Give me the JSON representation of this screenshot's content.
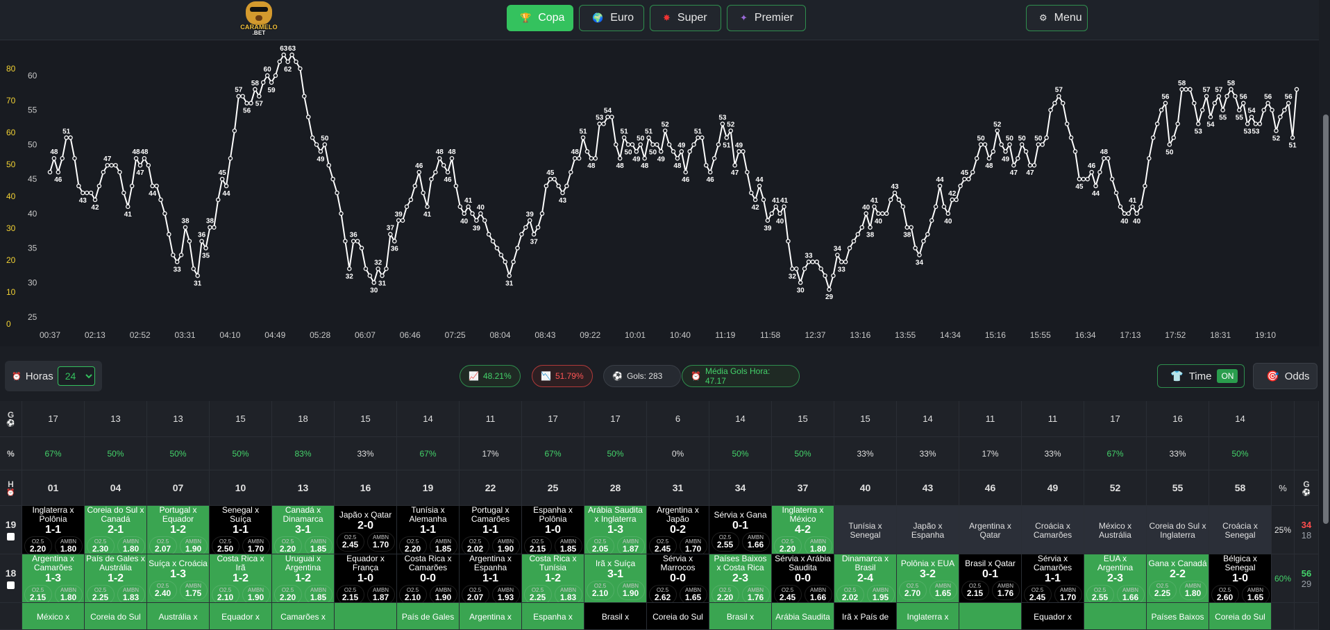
{
  "header": {
    "logo_text_1": "CARAMELO",
    "logo_text_2": ".BET",
    "tabs": [
      {
        "label": "Copa",
        "icon": "trophy-icon",
        "active": true
      },
      {
        "label": "Euro",
        "icon": "globe-icon",
        "active": false
      },
      {
        "label": "Super",
        "icon": "star-burst-icon",
        "active": false
      },
      {
        "label": "Premier",
        "icon": "sparkle-icon",
        "active": false
      }
    ],
    "menu_label": "Menu"
  },
  "chart_data": {
    "type": "line",
    "title": "",
    "x_tick_labels": [
      "00:37",
      "02:13",
      "02:52",
      "03:31",
      "04:10",
      "04:49",
      "05:28",
      "06:07",
      "06:46",
      "07:25",
      "08:04",
      "08:43",
      "09:22",
      "10:01",
      "10:40",
      "11:19",
      "11:58",
      "12:37",
      "13:16",
      "13:55",
      "14:34",
      "15:16",
      "15:55",
      "16:34",
      "17:13",
      "17:52",
      "18:31",
      "19:10"
    ],
    "y_left_ticks": [
      0,
      10,
      20,
      30,
      40,
      50,
      60,
      70,
      80
    ],
    "y_right_ticks": [
      25,
      30,
      35,
      40,
      45,
      50,
      55,
      60
    ],
    "y_right_range": [
      25,
      62
    ],
    "series": [
      {
        "values": [
          46,
          48,
          46,
          48,
          51,
          51,
          48,
          44,
          43,
          43,
          43,
          42,
          44,
          46,
          47,
          47,
          47,
          46,
          43,
          41,
          44,
          48,
          47,
          48,
          47,
          44,
          44,
          42,
          40,
          37,
          34,
          33,
          34,
          38,
          36,
          32,
          31,
          36,
          35,
          38,
          38,
          42,
          45,
          44,
          48,
          52,
          57,
          57,
          56,
          56,
          58,
          57,
          59,
          60,
          59,
          60,
          62,
          63,
          62,
          63,
          62,
          61,
          57,
          54,
          51,
          50,
          49,
          50,
          47,
          45,
          43,
          40,
          36,
          32,
          36,
          36,
          35,
          32,
          31,
          30,
          32,
          31,
          32,
          37,
          36,
          39,
          39,
          41,
          42,
          44,
          46,
          43,
          41,
          45,
          46,
          48,
          47,
          46,
          48,
          44,
          41,
          40,
          41,
          40,
          39,
          40,
          39,
          37,
          36,
          35,
          34,
          33,
          31,
          33,
          35,
          37,
          38,
          39,
          37,
          38,
          40,
          44,
          45,
          45,
          44,
          43,
          44,
          46,
          48,
          48,
          51,
          49,
          48,
          48,
          53,
          53,
          54,
          54,
          50,
          48,
          51,
          50,
          50,
          49,
          50,
          48,
          51,
          50,
          50,
          49,
          52,
          50,
          49,
          48,
          49,
          46,
          49,
          50,
          51,
          51,
          47,
          46,
          48,
          50,
          53,
          51,
          52,
          47,
          49,
          49,
          46,
          43,
          42,
          44,
          42,
          39,
          40,
          41,
          40,
          41,
          36,
          32,
          32,
          30,
          32,
          33,
          33,
          33,
          32,
          31,
          29,
          31,
          34,
          33,
          33,
          35,
          36,
          37,
          38,
          40,
          38,
          41,
          40,
          40,
          40,
          42,
          43,
          42,
          41,
          38,
          38,
          35,
          34,
          36,
          37,
          39,
          41,
          44,
          41,
          40,
          42,
          42,
          44,
          45,
          45,
          46,
          48,
          50,
          50,
          48,
          49,
          52,
          50,
          49,
          50,
          47,
          48,
          50,
          49,
          47,
          47,
          50,
          50,
          51,
          55,
          56,
          57,
          56,
          53,
          51,
          49,
          45,
          45,
          45,
          46,
          44,
          46,
          48,
          48,
          45,
          43,
          41,
          40,
          40,
          41,
          40,
          41,
          44,
          48,
          51,
          53,
          55,
          56,
          50,
          51,
          53,
          58,
          58,
          58,
          56,
          53,
          55,
          57,
          54,
          56,
          57,
          55,
          57,
          58,
          57,
          55,
          56,
          53,
          54,
          53,
          53,
          55,
          56,
          55,
          52,
          54,
          55,
          56,
          51,
          58
        ]
      }
    ]
  },
  "controls": {
    "hours_label": "Horas",
    "hours_value": "24",
    "stat_up": "48.21%",
    "stat_down": "51.79%",
    "gols": "Gols: 283",
    "media": "Média Gols Hora: 47.17",
    "time_label": "Time",
    "time_state": "ON",
    "odds_label": "Odds"
  },
  "grid": {
    "label_g": "G",
    "label_pct": "%",
    "label_h": "H",
    "goals": [
      "17",
      "13",
      "13",
      "15",
      "18",
      "15",
      "14",
      "11",
      "17",
      "17",
      "6",
      "14",
      "15",
      "15",
      "14",
      "11",
      "11",
      "17",
      "16",
      "14"
    ],
    "percents": [
      "67%",
      "50%",
      "50%",
      "50%",
      "83%",
      "33%",
      "67%",
      "17%",
      "67%",
      "50%",
      "0%",
      "50%",
      "50%",
      "33%",
      "33%",
      "17%",
      "33%",
      "67%",
      "33%",
      "50%"
    ],
    "minutes": [
      "01",
      "04",
      "07",
      "10",
      "13",
      "16",
      "19",
      "22",
      "25",
      "28",
      "31",
      "34",
      "37",
      "40",
      "43",
      "46",
      "49",
      "52",
      "55",
      "58"
    ],
    "odd_key_1": "O2.5",
    "odd_key_2": "AMBN",
    "rows": [
      {
        "hour": "19",
        "pct": "25%",
        "count_a": "34",
        "count_b": "18",
        "cells": [
          {
            "teams": "Inglaterra x Polônia",
            "score": "1-1",
            "o1": "2.20",
            "o2": "1.80",
            "c": "black"
          },
          {
            "teams": "Coreia do Sul x Canadá",
            "score": "2-1",
            "o1": "2.30",
            "o2": "1.80",
            "c": "green"
          },
          {
            "teams": "Portugal x Equador",
            "score": "1-2",
            "o1": "2.07",
            "o2": "1.90",
            "c": "green"
          },
          {
            "teams": "Senegal x Suíça",
            "score": "1-1",
            "o1": "2.50",
            "o2": "1.70",
            "c": "black"
          },
          {
            "teams": "Canadá x Dinamarca",
            "score": "3-1",
            "o1": "2.20",
            "o2": "1.85",
            "c": "green"
          },
          {
            "teams": "Japão x Qatar",
            "score": "2-0",
            "o1": "2.45",
            "o2": "1.70",
            "c": "black"
          },
          {
            "teams": "Tunísia x Alemanha",
            "score": "1-1",
            "o1": "2.20",
            "o2": "1.85",
            "c": "black"
          },
          {
            "teams": "Portugal x Camarões",
            "score": "1-1",
            "o1": "2.02",
            "o2": "1.90",
            "c": "black"
          },
          {
            "teams": "Espanha x Polônia",
            "score": "1-0",
            "o1": "2.15",
            "o2": "1.85",
            "c": "black"
          },
          {
            "teams": "Arábia Saudita x Inglaterra",
            "score": "1-3",
            "o1": "2.05",
            "o2": "1.87",
            "c": "green"
          },
          {
            "teams": "Argentina x Japão",
            "score": "0-2",
            "o1": "2.45",
            "o2": "1.70",
            "c": "black"
          },
          {
            "teams": "Sérvia x Gana",
            "score": "0-1",
            "o1": "2.55",
            "o2": "1.66",
            "c": "black"
          },
          {
            "teams": "Inglaterra x México",
            "score": "4-2",
            "o1": "2.20",
            "o2": "1.80",
            "c": "green"
          },
          {
            "teams": "Tunísia x Senegal",
            "score": "",
            "o1": "",
            "o2": "",
            "c": "gray"
          },
          {
            "teams": "Japão x Espanha",
            "score": "",
            "o1": "",
            "o2": "",
            "c": "gray"
          },
          {
            "teams": "Argentina x Qatar",
            "score": "",
            "o1": "",
            "o2": "",
            "c": "gray"
          },
          {
            "teams": "Croácia x Camarões",
            "score": "",
            "o1": "",
            "o2": "",
            "c": "gray"
          },
          {
            "teams": "México x Austrália",
            "score": "",
            "o1": "",
            "o2": "",
            "c": "gray"
          },
          {
            "teams": "Coreia do Sul x Inglaterra",
            "score": "",
            "o1": "",
            "o2": "",
            "c": "gray"
          },
          {
            "teams": "Croácia x Senegal",
            "score": "",
            "o1": "",
            "o2": "",
            "c": "gray"
          }
        ]
      },
      {
        "hour": "18",
        "pct": "60%",
        "count_a": "56",
        "count_b": "29",
        "cells": [
          {
            "teams": "Argentina x Camarões",
            "score": "1-3",
            "o1": "2.15",
            "o2": "1.80",
            "c": "green"
          },
          {
            "teams": "País de Gales x Austrália",
            "score": "1-2",
            "o1": "2.25",
            "o2": "1.83",
            "c": "green"
          },
          {
            "teams": "Suíça x Croácia",
            "score": "1-3",
            "o1": "2.40",
            "o2": "1.75",
            "c": "green"
          },
          {
            "teams": "Costa Rica x Irã",
            "score": "1-2",
            "o1": "2.10",
            "o2": "1.90",
            "c": "green"
          },
          {
            "teams": "Uruguai x Argentina",
            "score": "1-2",
            "o1": "2.20",
            "o2": "1.85",
            "c": "green"
          },
          {
            "teams": "Equador x França",
            "score": "1-0",
            "o1": "2.15",
            "o2": "1.87",
            "c": "black"
          },
          {
            "teams": "Costa Rica x Camarões",
            "score": "0-0",
            "o1": "2.10",
            "o2": "1.90",
            "c": "black"
          },
          {
            "teams": "Argentina x Espanha",
            "score": "1-1",
            "o1": "2.07",
            "o2": "1.93",
            "c": "black"
          },
          {
            "teams": "Costa Rica x Tunísia",
            "score": "1-2",
            "o1": "2.25",
            "o2": "1.83",
            "c": "green"
          },
          {
            "teams": "Irã x Suíça",
            "score": "3-1",
            "o1": "2.10",
            "o2": "1.90",
            "c": "green"
          },
          {
            "teams": "Sérvia x Marrocos",
            "score": "0-0",
            "o1": "2.62",
            "o2": "1.65",
            "c": "black"
          },
          {
            "teams": "Países Baixos x Costa Rica",
            "score": "2-3",
            "o1": "2.20",
            "o2": "1.76",
            "c": "green"
          },
          {
            "teams": "Sérvia x Arábia Saudita",
            "score": "0-0",
            "o1": "2.45",
            "o2": "1.66",
            "c": "black"
          },
          {
            "teams": "Dinamarca x Brasil",
            "score": "2-4",
            "o1": "2.02",
            "o2": "1.95",
            "c": "green"
          },
          {
            "teams": "Polônia x EUA",
            "score": "3-2",
            "o1": "2.70",
            "o2": "1.65",
            "c": "green"
          },
          {
            "teams": "Brasil x Qatar",
            "score": "0-1",
            "o1": "2.15",
            "o2": "1.76",
            "c": "black"
          },
          {
            "teams": "Sérvia x Camarões",
            "score": "1-1",
            "o1": "2.45",
            "o2": "1.70",
            "c": "black"
          },
          {
            "teams": "EUA x Argentina",
            "score": "2-3",
            "o1": "2.55",
            "o2": "1.66",
            "c": "green"
          },
          {
            "teams": "Gana x Canadá",
            "score": "2-2",
            "o1": "2.25",
            "o2": "1.80",
            "c": "green"
          },
          {
            "teams": "Bélgica x Senegal",
            "score": "1-0",
            "o1": "2.60",
            "o2": "1.65",
            "c": "black"
          }
        ]
      },
      {
        "hour": "",
        "pct": "",
        "count_a": "",
        "count_b": "",
        "cells": [
          {
            "teams": "México x",
            "c": "green"
          },
          {
            "teams": "Coreia do Sul",
            "c": "green"
          },
          {
            "teams": "Austrália x",
            "c": "green"
          },
          {
            "teams": "Equador x",
            "c": "green"
          },
          {
            "teams": "Camarões x",
            "c": "green"
          },
          {
            "teams": "",
            "c": "green"
          },
          {
            "teams": "País de Gales",
            "c": "green"
          },
          {
            "teams": "Argentina x",
            "c": "green"
          },
          {
            "teams": "Espanha x",
            "c": "green"
          },
          {
            "teams": "Brasil x",
            "c": "black"
          },
          {
            "teams": "Coreia do Sul",
            "c": "black"
          },
          {
            "teams": "Brasil x",
            "c": "green"
          },
          {
            "teams": "Arábia Saudita",
            "c": "green"
          },
          {
            "teams": "Irã x País de",
            "c": "black"
          },
          {
            "teams": "Inglaterra x",
            "c": "green"
          },
          {
            "teams": "",
            "c": "green"
          },
          {
            "teams": "Equador x",
            "c": "black"
          },
          {
            "teams": "",
            "c": "green"
          },
          {
            "teams": "Países Baixos",
            "c": "green"
          },
          {
            "teams": "Coreia do Sul",
            "c": "green"
          }
        ]
      }
    ]
  }
}
